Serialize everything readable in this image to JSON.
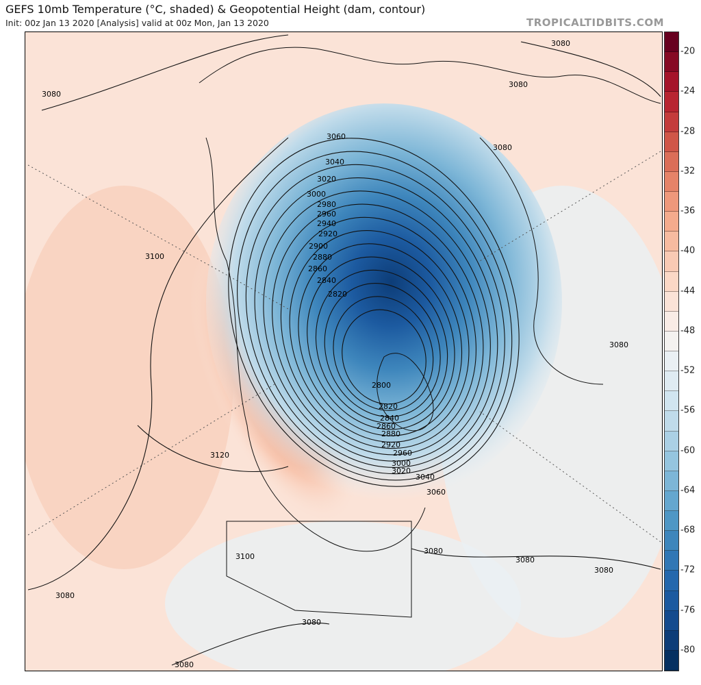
{
  "header": {
    "title": "GEFS 10mb Temperature (°C, shaded) & Geopotential Height (dam, contour)",
    "subtitle": "Init: 00z Jan 13 2020   [Analysis]   valid at 00z Mon, Jan 13 2020",
    "brand": "TROPICALTIDBITS.COM"
  },
  "colorbar": {
    "ticks": [
      "-20",
      "-24",
      "-28",
      "-32",
      "-36",
      "-40",
      "-44",
      "-48",
      "-52",
      "-56",
      "-60",
      "-64",
      "-68",
      "-72",
      "-76",
      "-80"
    ],
    "colors": [
      "#67001f",
      "#860a24",
      "#a5142a",
      "#b82531",
      "#c43c3c",
      "#d05648",
      "#db6e58",
      "#e58368",
      "#ee987b",
      "#f4ab8d",
      "#f7bba0",
      "#f9cab4",
      "#fbd8c6",
      "#fbe3d7",
      "#f9ece6",
      "#f4f2f0",
      "#eaf0f4",
      "#dfebf2",
      "#d1e5f0",
      "#c0dbea",
      "#abd0e5",
      "#95c5df",
      "#7db6d7",
      "#65a7cf",
      "#4f97c5",
      "#3e86bc",
      "#3177b5",
      "#2568ad",
      "#1c5aa0",
      "#144b8e",
      "#0d3d78",
      "#053061"
    ]
  },
  "contour_labels": [
    "3060",
    "3040",
    "3020",
    "3000",
    "2980",
    "2960",
    "2940",
    "2920",
    "2900",
    "2880",
    "2860",
    "2840",
    "2820",
    "2800",
    "2820",
    "2840",
    "2860",
    "2880",
    "2920",
    "2960",
    "3000",
    "3020",
    "3040",
    "3060",
    "3080",
    "3080",
    "3080",
    "3080",
    "3080",
    "3080",
    "3080",
    "3080",
    "3080",
    "3080",
    "3080",
    "3100",
    "3100",
    "3120"
  ]
}
